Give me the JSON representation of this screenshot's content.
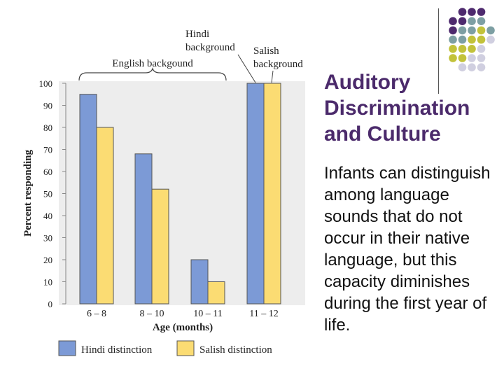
{
  "slide": {
    "title_lines": [
      "Auditory",
      "Discrimination",
      "and Culture"
    ],
    "body": "Infants can distinguish among language sounds that do not occur in their native language, but this capacity diminishes during the first year of life.",
    "colors": {
      "title": "#4b2a6b",
      "dot_purple": "#4e2a6e",
      "dot_teal": "#7d9fa3",
      "dot_olive": "#c2c23a",
      "dot_lavender": "#d0cfe0"
    }
  },
  "chart_data": {
    "type": "bar",
    "categories": [
      "6 – 8",
      "8 – 10",
      "10 – 11",
      "11 – 12"
    ],
    "series": [
      {
        "name": "Hindi distinction",
        "values": [
          95,
          68,
          20,
          100
        ],
        "color": "#7c9ad6"
      },
      {
        "name": "Salish distinction",
        "values": [
          80,
          52,
          10,
          100
        ],
        "color": "#fbdc73"
      }
    ],
    "xlabel": "Age (months)",
    "ylabel": "Percent responding",
    "ylim": [
      0,
      100
    ],
    "yticks": [
      0,
      10,
      20,
      30,
      40,
      50,
      60,
      70,
      80,
      90,
      100
    ],
    "grid": false,
    "legend_position": "bottom",
    "annotations": {
      "english": "English backgound",
      "hindi_lines": [
        "Hindi",
        "background"
      ],
      "salish_lines": [
        "Salish",
        "background"
      ]
    },
    "background_color": "#ededed"
  }
}
